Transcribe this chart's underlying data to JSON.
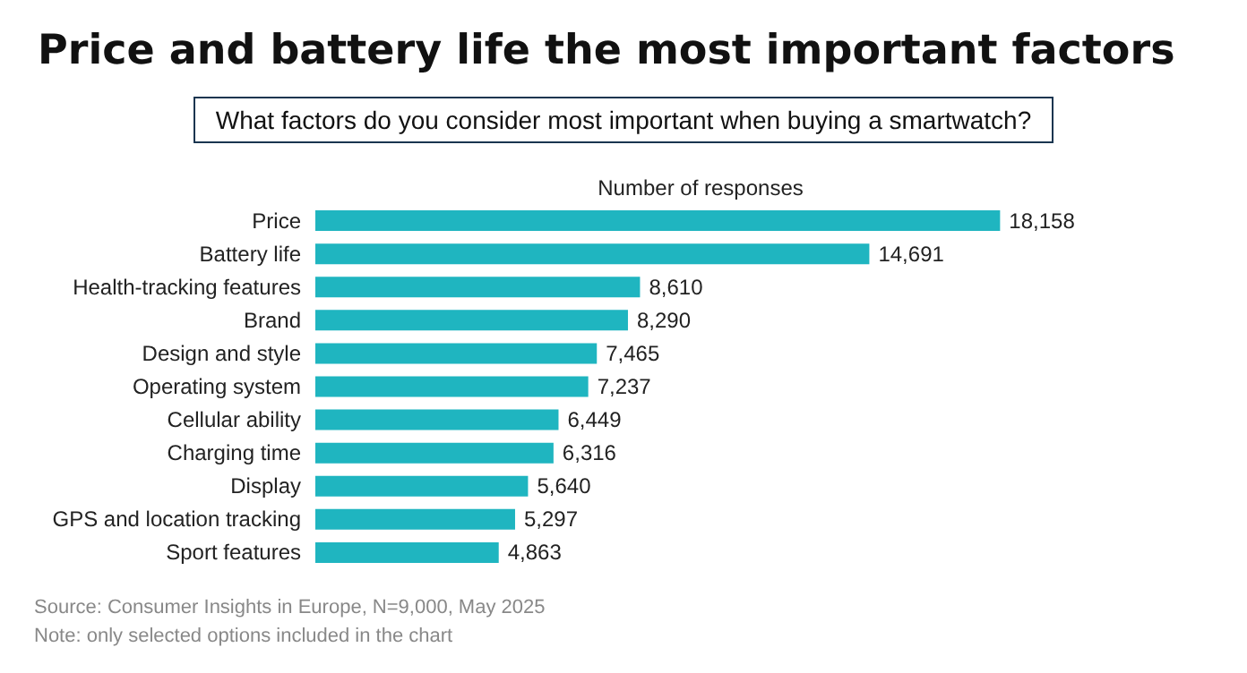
{
  "chart_data": {
    "type": "bar",
    "orientation": "horizontal",
    "title": "Price and battery life the most important factors",
    "subtitle": "What factors do you consider most important when buying a smartwatch?",
    "xlabel": "Number of responses",
    "categories": [
      "Price",
      "Battery life",
      "Health-tracking features",
      "Brand",
      "Design and style",
      "Operating system",
      "Cellular ability",
      "Charging time",
      "Display",
      "GPS and location tracking",
      "Sport features"
    ],
    "values": [
      18158,
      14691,
      8610,
      8290,
      7465,
      7237,
      6449,
      6316,
      5640,
      5297,
      4863
    ],
    "value_labels": [
      "18,158",
      "14,691",
      "8,610",
      "8,290",
      "7,465",
      "7,237",
      "6,449",
      "6,316",
      "5,640",
      "5,297",
      "4,863"
    ],
    "color": "#1fb5c0",
    "annotations": [
      "Source: Consumer Insights in Europe, N=9,000, May 2025",
      "Note: only selected options included in the chart"
    ]
  }
}
